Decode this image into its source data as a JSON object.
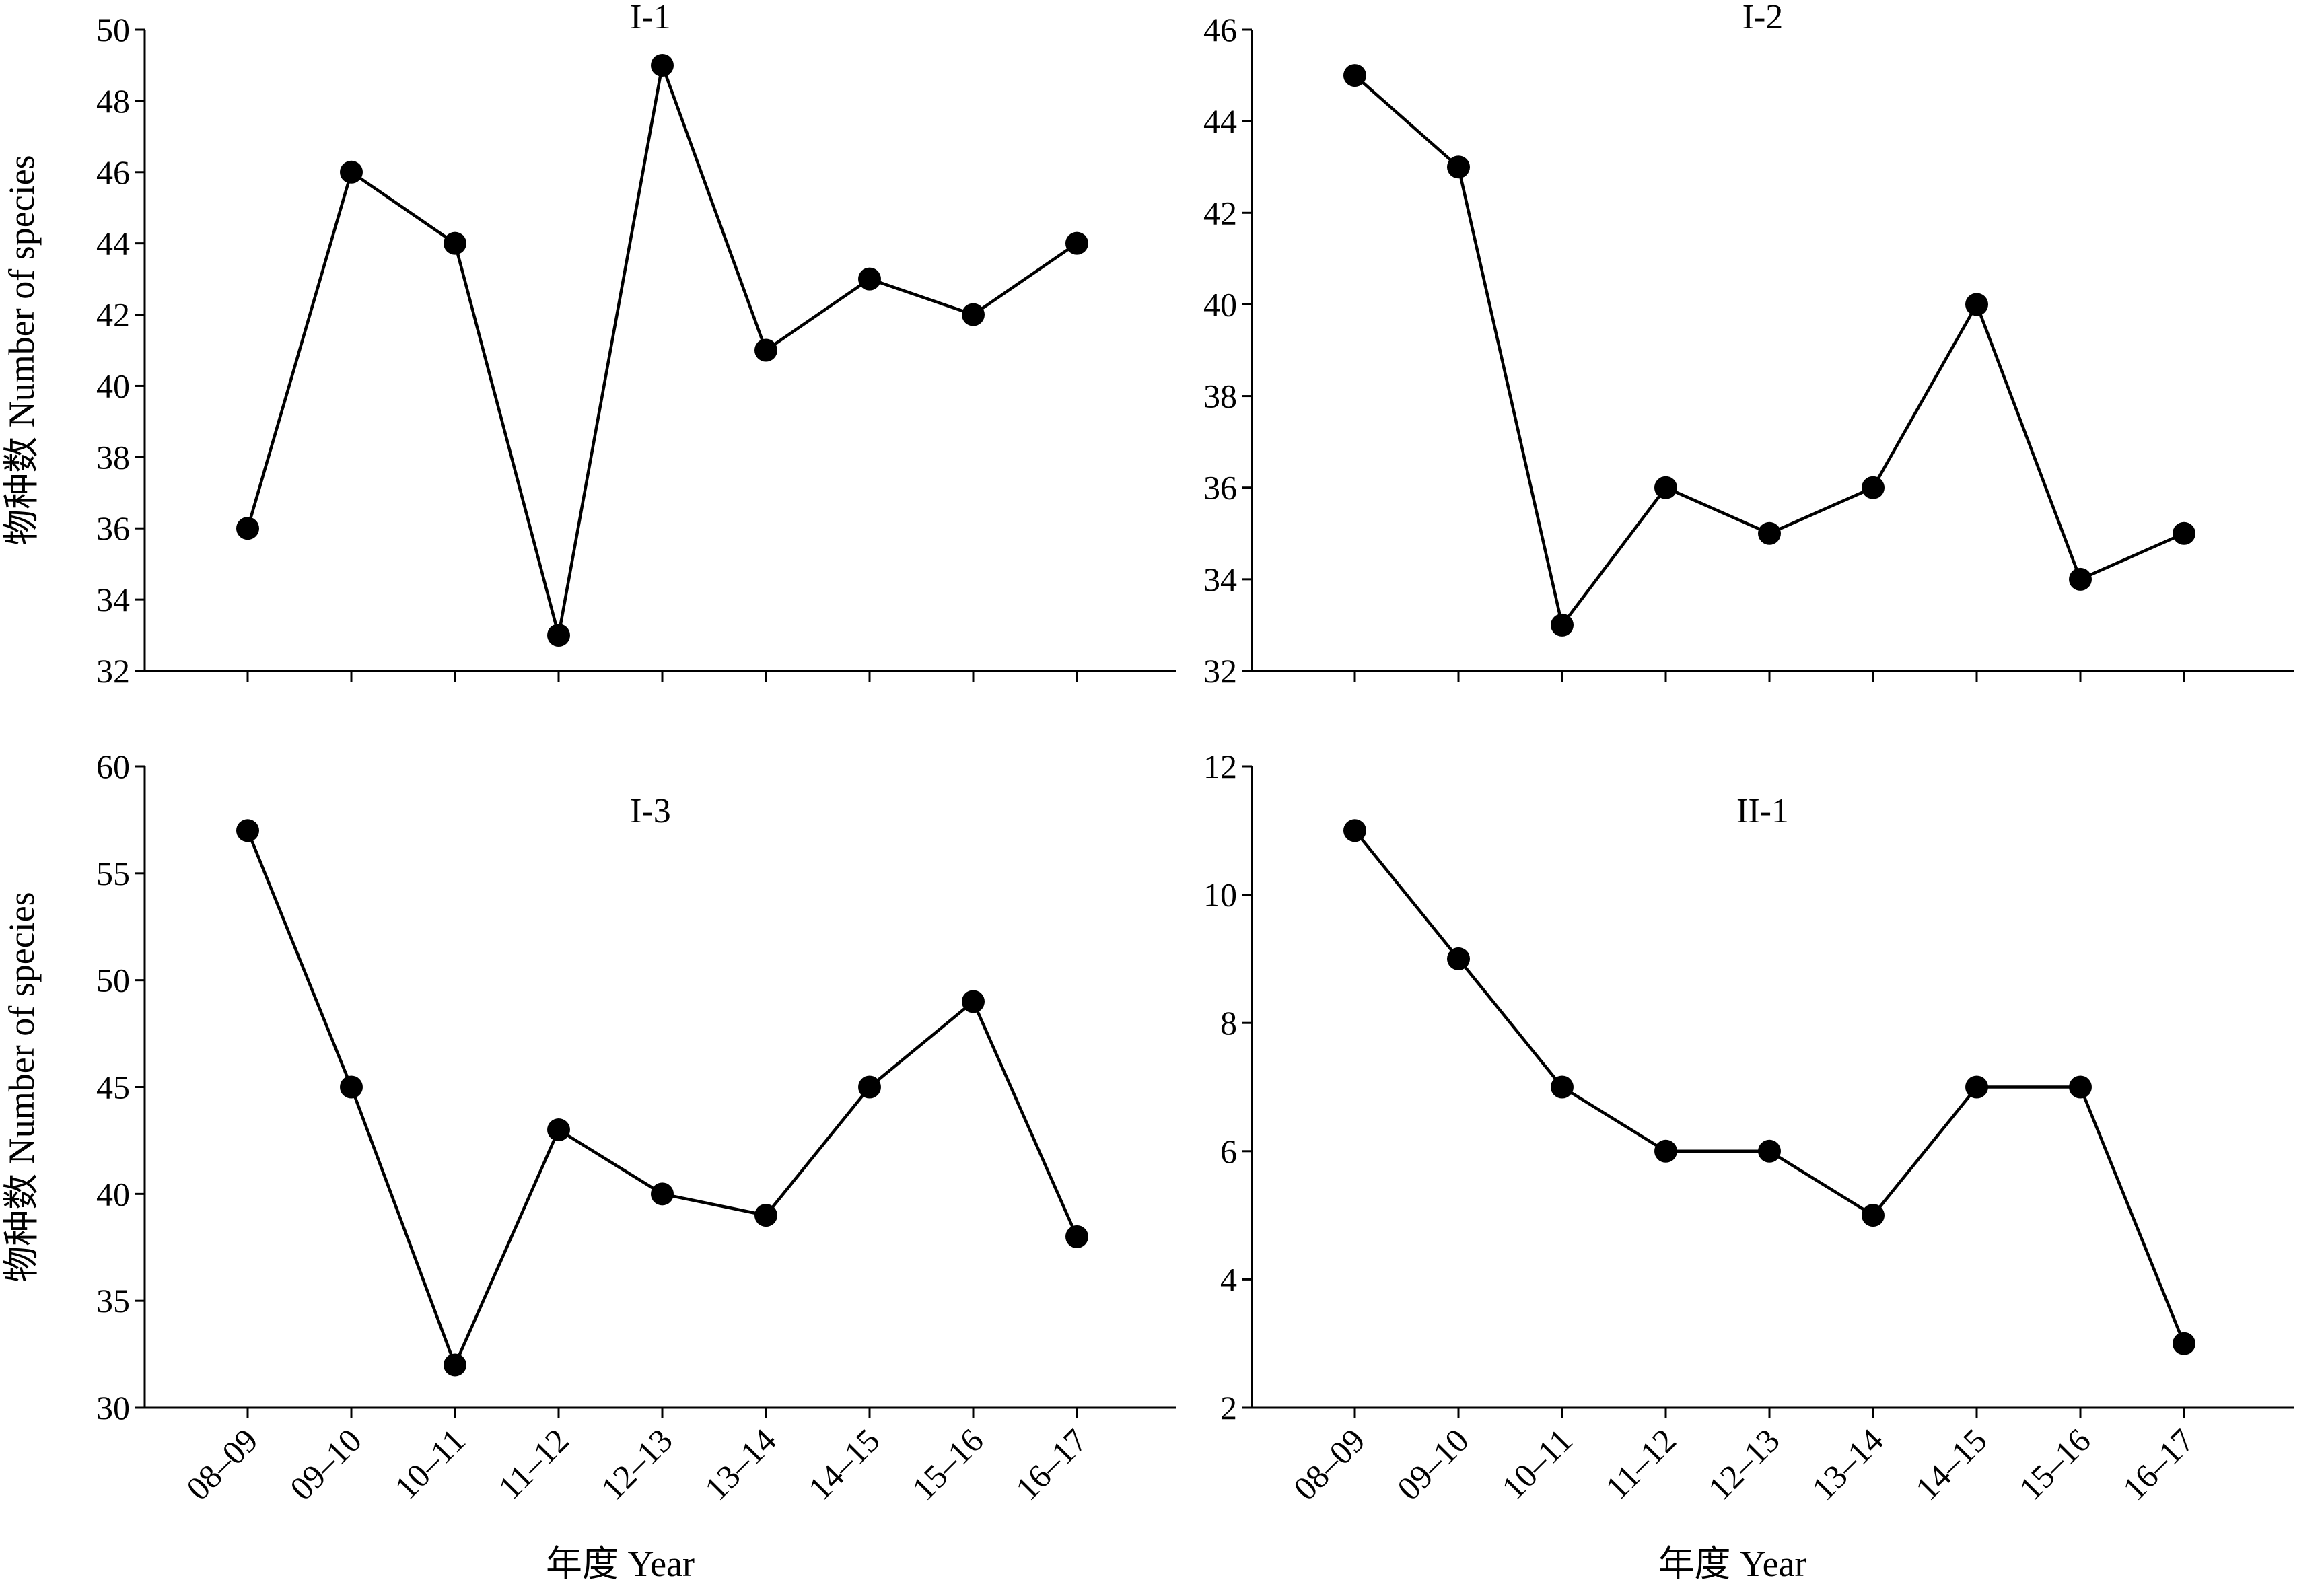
{
  "colors": {
    "line": "#000000",
    "marker": "#000000",
    "background": "#ffffff"
  },
  "chart_data": [
    {
      "type": "line",
      "title": "I-1",
      "xlabel": "",
      "ylabel": "物种数 Number of species",
      "categories": [
        "08–09",
        "09–10",
        "10–11",
        "11–12",
        "12–13",
        "13–14",
        "14–15",
        "15–16",
        "16–17"
      ],
      "show_xtick_labels": false,
      "values": [
        36,
        46,
        44,
        33,
        49,
        41,
        43,
        42,
        44
      ],
      "ylim": [
        32,
        50
      ],
      "yticks": [
        32,
        34,
        36,
        38,
        40,
        42,
        44,
        46,
        48,
        50
      ],
      "grid": false
    },
    {
      "type": "line",
      "title": "I-2",
      "xlabel": "",
      "ylabel": "",
      "categories": [
        "08–09",
        "09–10",
        "10–11",
        "11–12",
        "12–13",
        "13–14",
        "14–15",
        "15–16",
        "16–17"
      ],
      "show_xtick_labels": false,
      "values": [
        45,
        43,
        33,
        36,
        35,
        36,
        40,
        34,
        35
      ],
      "ylim": [
        32,
        46
      ],
      "yticks": [
        32,
        34,
        36,
        38,
        40,
        42,
        44,
        46
      ],
      "grid": false
    },
    {
      "type": "line",
      "title": "I-3",
      "xlabel": "年度 Year",
      "ylabel": "物种数 Number of species",
      "categories": [
        "08–09",
        "09–10",
        "10–11",
        "11–12",
        "12–13",
        "13–14",
        "14–15",
        "15–16",
        "16–17"
      ],
      "show_xtick_labels": true,
      "values": [
        57,
        45,
        32,
        43,
        40,
        39,
        45,
        49,
        38
      ],
      "ylim": [
        30,
        60
      ],
      "yticks": [
        30,
        35,
        40,
        45,
        50,
        55,
        60
      ],
      "grid": false
    },
    {
      "type": "line",
      "title": "II-1",
      "xlabel": "年度 Year",
      "ylabel": "",
      "categories": [
        "08–09",
        "09–10",
        "10–11",
        "11–12",
        "12–13",
        "13–14",
        "14–15",
        "15–16",
        "16–17"
      ],
      "show_xtick_labels": true,
      "values": [
        11,
        9,
        7,
        6,
        6,
        5,
        7,
        7,
        3
      ],
      "ylim": [
        2,
        12
      ],
      "yticks": [
        2,
        4,
        6,
        8,
        10,
        12
      ],
      "grid": false
    }
  ]
}
